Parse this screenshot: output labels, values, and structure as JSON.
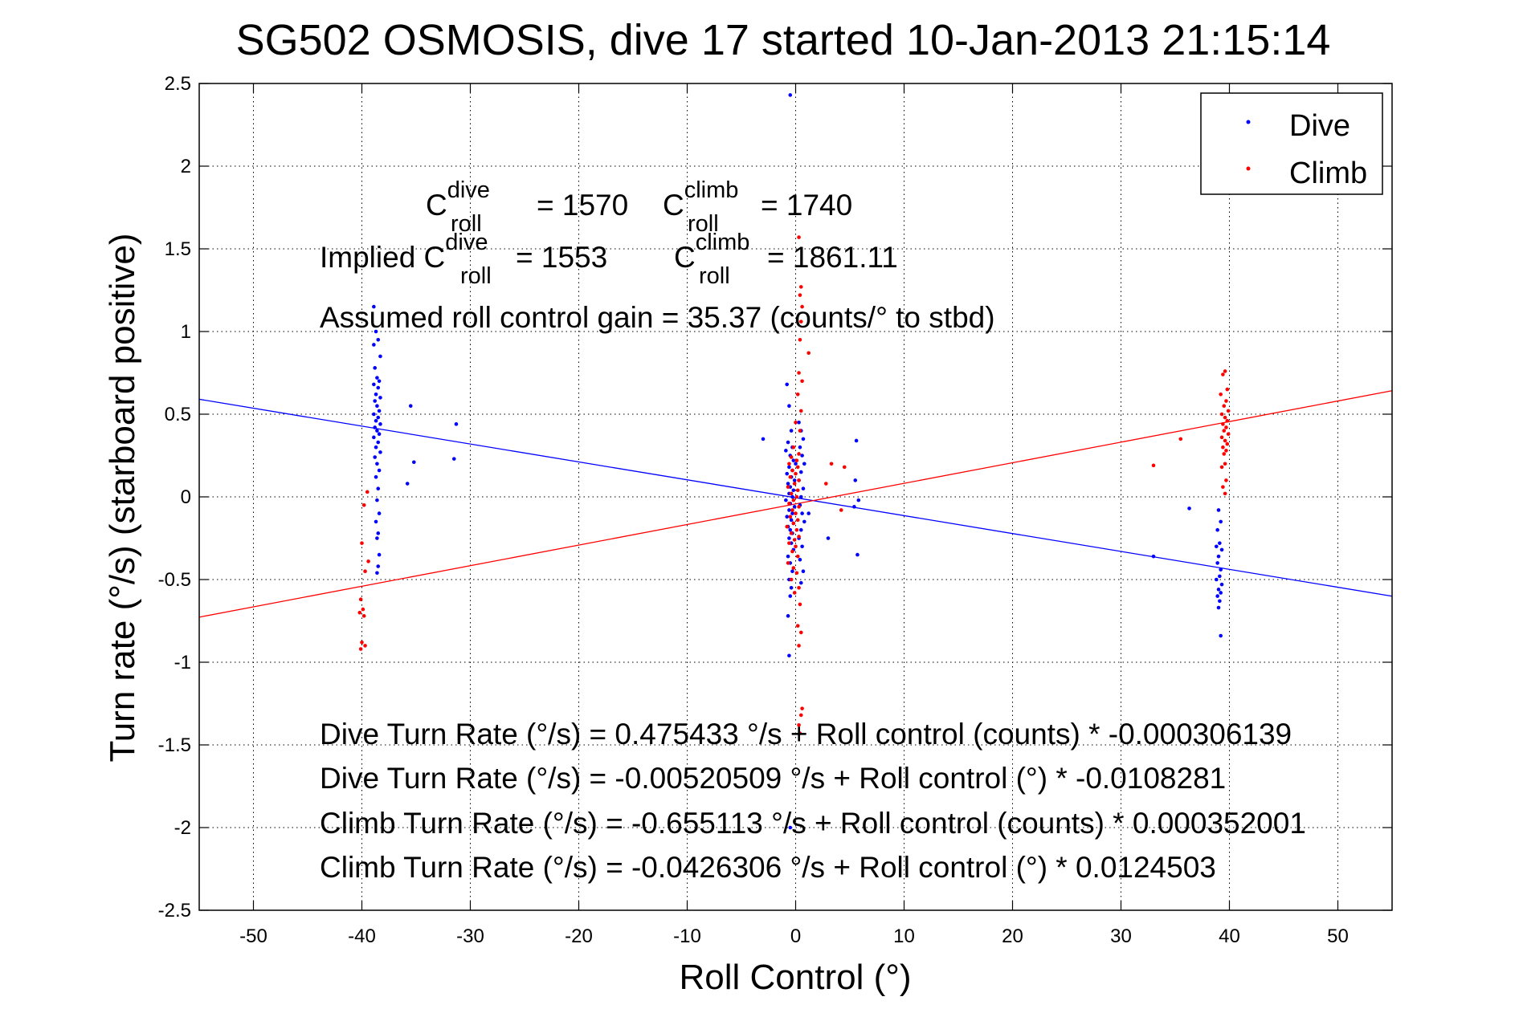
{
  "chart_data": {
    "type": "scatter",
    "title": "SG502 OSMOSIS, dive 17 started 10-Jan-2013 21:15:14",
    "xlabel": "Roll Control (°)",
    "ylabel": "Turn rate (°/s) (starboard positive)",
    "xlim": [
      -55,
      55
    ],
    "ylim": [
      -2.5,
      2.5
    ],
    "xticks": [
      "-50",
      "-40",
      "-30",
      "-20",
      "-10",
      "0",
      "10",
      "20",
      "30",
      "40",
      "50"
    ],
    "yticks": [
      "-2.5",
      "-2",
      "-1.5",
      "-1",
      "-0.5",
      "0",
      "0.5",
      "1",
      "1.5",
      "2",
      "2.5"
    ],
    "grid": true,
    "legend_position": "top-right",
    "legend": [
      {
        "name": "Dive",
        "color": "#0000ff"
      },
      {
        "name": "Climb",
        "color": "#ff0000"
      }
    ],
    "fit_lines": [
      {
        "series": "Dive",
        "intercept": -0.00520509,
        "slope": -0.0108281,
        "color": "#0000ff"
      },
      {
        "series": "Climb",
        "intercept": -0.0426306,
        "slope": 0.0124503,
        "color": "#ff0000"
      }
    ],
    "annotations": {
      "c_roll_line": {
        "dive_base": "C",
        "dive_sup": "dive",
        "dive_sub": "roll",
        "dive_value": "= 1570",
        "climb_base": "C",
        "climb_sup": "climb",
        "climb_sub": "roll",
        "climb_value": "= 1740"
      },
      "implied_line": {
        "prefix": "Implied C",
        "dive_sup": "dive",
        "dive_sub": "roll",
        "dive_value": "= 1553",
        "climb_base": "C",
        "climb_sup": "climb",
        "climb_sub": "roll",
        "climb_value": "= 1861.11"
      },
      "gain": "Assumed roll control gain = 35.37 (counts/° to stbd)",
      "equations": [
        "Dive Turn Rate (°/s) = 0.475433 °/s + Roll control (counts) * -0.000306139",
        "Dive Turn Rate (°/s) = -0.00520509 °/s + Roll control (°) * -0.0108281",
        "Climb Turn Rate (°/s) = -0.655113 °/s + Roll control (counts) * 0.000352001",
        "Climb Turn Rate (°/s) = -0.0426306 °/s + Roll control (°) * 0.0124503"
      ]
    },
    "series": [
      {
        "name": "Dive",
        "color": "#0000ff",
        "points": [
          [
            -38.9,
            1.15
          ],
          [
            -38.7,
            1.0
          ],
          [
            -38.5,
            0.95
          ],
          [
            -38.9,
            0.92
          ],
          [
            -38.3,
            0.85
          ],
          [
            -38.8,
            0.78
          ],
          [
            -38.6,
            0.72
          ],
          [
            -38.4,
            0.7
          ],
          [
            -38.9,
            0.68
          ],
          [
            -38.5,
            0.66
          ],
          [
            -38.7,
            0.62
          ],
          [
            -38.3,
            0.6
          ],
          [
            -38.8,
            0.58
          ],
          [
            -38.6,
            0.55
          ],
          [
            -38.4,
            0.52
          ],
          [
            -38.9,
            0.5
          ],
          [
            -38.5,
            0.48
          ],
          [
            -38.7,
            0.46
          ],
          [
            -38.3,
            0.44
          ],
          [
            -38.8,
            0.42
          ],
          [
            -38.6,
            0.4
          ],
          [
            -38.4,
            0.38
          ],
          [
            -38.9,
            0.36
          ],
          [
            -38.5,
            0.33
          ],
          [
            -38.7,
            0.3
          ],
          [
            -38.3,
            0.27
          ],
          [
            -38.8,
            0.24
          ],
          [
            -38.6,
            0.2
          ],
          [
            -38.4,
            0.16
          ],
          [
            -38.7,
            0.12
          ],
          [
            -38.5,
            0.05
          ],
          [
            -38.6,
            -0.02
          ],
          [
            -38.4,
            -0.1
          ],
          [
            -38.7,
            -0.15
          ],
          [
            -38.5,
            -0.22
          ],
          [
            -38.6,
            -0.25
          ],
          [
            -38.4,
            -0.35
          ],
          [
            -38.5,
            -0.42
          ],
          [
            -38.6,
            -0.46
          ],
          [
            -35.5,
            0.55
          ],
          [
            -35.2,
            0.21
          ],
          [
            -35.8,
            0.08
          ],
          [
            -31.3,
            0.44
          ],
          [
            -31.5,
            0.23
          ],
          [
            -0.5,
            2.43
          ],
          [
            -0.8,
            0.68
          ],
          [
            -0.6,
            0.55
          ],
          [
            -0.4,
            0.4
          ],
          [
            -3.0,
            0.35
          ],
          [
            -0.7,
            0.33
          ],
          [
            -0.3,
            0.3
          ],
          [
            -0.9,
            0.28
          ],
          [
            -0.5,
            0.25
          ],
          [
            -0.2,
            0.22
          ],
          [
            0.0,
            0.2
          ],
          [
            -0.6,
            0.18
          ],
          [
            -0.3,
            0.16
          ],
          [
            -0.8,
            0.14
          ],
          [
            -0.4,
            0.12
          ],
          [
            -0.1,
            0.1
          ],
          [
            -0.7,
            0.08
          ],
          [
            -0.5,
            0.06
          ],
          [
            -0.2,
            0.04
          ],
          [
            -0.6,
            0.02
          ],
          [
            -0.3,
            0.0
          ],
          [
            -0.9,
            -0.02
          ],
          [
            -0.5,
            -0.04
          ],
          [
            -0.1,
            -0.06
          ],
          [
            -0.6,
            -0.08
          ],
          [
            -0.3,
            -0.1
          ],
          [
            -0.8,
            -0.12
          ],
          [
            -0.4,
            -0.14
          ],
          [
            -0.2,
            -0.16
          ],
          [
            -0.7,
            -0.18
          ],
          [
            -0.5,
            -0.2
          ],
          [
            -0.3,
            -0.22
          ],
          [
            -0.6,
            -0.25
          ],
          [
            -0.4,
            -0.28
          ],
          [
            -0.2,
            -0.32
          ],
          [
            -0.7,
            -0.36
          ],
          [
            -0.5,
            -0.4
          ],
          [
            -0.3,
            -0.45
          ],
          [
            -0.6,
            -0.5
          ],
          [
            -0.4,
            -0.55
          ],
          [
            -0.5,
            -0.6
          ],
          [
            -0.7,
            -0.72
          ],
          [
            -0.6,
            -0.96
          ],
          [
            -0.5,
            -2.0
          ],
          [
            0.3,
            0.45
          ],
          [
            0.5,
            0.4
          ],
          [
            0.7,
            0.35
          ],
          [
            0.4,
            0.3
          ],
          [
            0.6,
            0.25
          ],
          [
            0.8,
            0.2
          ],
          [
            0.5,
            0.15
          ],
          [
            0.3,
            0.1
          ],
          [
            0.7,
            0.05
          ],
          [
            0.5,
            0.0
          ],
          [
            0.4,
            -0.05
          ],
          [
            0.6,
            -0.1
          ],
          [
            0.8,
            -0.15
          ],
          [
            0.5,
            -0.2
          ],
          [
            0.3,
            -0.25
          ],
          [
            0.6,
            -0.3
          ],
          [
            0.4,
            -0.38
          ],
          [
            0.7,
            -0.45
          ],
          [
            0.5,
            -0.52
          ],
          [
            5.6,
            0.34
          ],
          [
            5.5,
            0.1
          ],
          [
            5.8,
            -0.02
          ],
          [
            5.4,
            -0.06
          ],
          [
            5.7,
            -0.35
          ],
          [
            3.0,
            -0.25
          ],
          [
            1.2,
            -0.1
          ],
          [
            33.0,
            -0.36
          ],
          [
            36.3,
            -0.07
          ],
          [
            39.0,
            -0.08
          ],
          [
            39.2,
            -0.15
          ],
          [
            38.9,
            -0.2
          ],
          [
            39.1,
            -0.28
          ],
          [
            38.8,
            -0.3
          ],
          [
            39.3,
            -0.32
          ],
          [
            39.0,
            -0.36
          ],
          [
            38.9,
            -0.4
          ],
          [
            39.2,
            -0.44
          ],
          [
            39.1,
            -0.48
          ],
          [
            38.8,
            -0.5
          ],
          [
            39.3,
            -0.53
          ],
          [
            39.0,
            -0.56
          ],
          [
            39.2,
            -0.58
          ],
          [
            38.9,
            -0.6
          ],
          [
            39.1,
            -0.63
          ],
          [
            39.0,
            -0.67
          ],
          [
            39.2,
            -0.84
          ]
        ]
      },
      {
        "name": "Climb",
        "color": "#ff0000",
        "points": [
          [
            -39.5,
            0.03
          ],
          [
            -39.8,
            -0.05
          ],
          [
            -40.0,
            -0.28
          ],
          [
            -39.4,
            -0.39
          ],
          [
            -39.7,
            -0.45
          ],
          [
            -40.1,
            -0.62
          ],
          [
            -39.9,
            -0.68
          ],
          [
            -40.2,
            -0.7
          ],
          [
            -39.8,
            -0.72
          ],
          [
            -40.0,
            -0.88
          ],
          [
            -39.7,
            -0.9
          ],
          [
            -40.1,
            -0.92
          ],
          [
            0.3,
            1.57
          ],
          [
            0.5,
            1.27
          ],
          [
            0.4,
            1.22
          ],
          [
            0.6,
            1.15
          ],
          [
            0.5,
            1.06
          ],
          [
            0.4,
            0.95
          ],
          [
            1.2,
            0.87
          ],
          [
            0.3,
            0.75
          ],
          [
            0.6,
            0.7
          ],
          [
            0.2,
            0.62
          ],
          [
            0.5,
            0.52
          ],
          [
            0.0,
            0.45
          ],
          [
            0.4,
            0.4
          ],
          [
            -0.2,
            0.3
          ],
          [
            0.3,
            0.26
          ],
          [
            -0.4,
            0.24
          ],
          [
            0.1,
            0.22
          ],
          [
            -0.6,
            0.2
          ],
          [
            0.2,
            0.18
          ],
          [
            -0.3,
            0.16
          ],
          [
            0.0,
            0.14
          ],
          [
            -0.5,
            0.12
          ],
          [
            0.3,
            0.1
          ],
          [
            -0.1,
            0.08
          ],
          [
            -0.7,
            0.06
          ],
          [
            0.2,
            0.04
          ],
          [
            -0.4,
            0.02
          ],
          [
            0.1,
            0.0
          ],
          [
            -0.2,
            -0.02
          ],
          [
            -0.6,
            -0.04
          ],
          [
            0.3,
            -0.06
          ],
          [
            -0.3,
            -0.08
          ],
          [
            0.0,
            -0.1
          ],
          [
            -0.5,
            -0.12
          ],
          [
            0.2,
            -0.14
          ],
          [
            -0.2,
            -0.16
          ],
          [
            -0.8,
            -0.18
          ],
          [
            0.1,
            -0.2
          ],
          [
            -0.4,
            -0.22
          ],
          [
            0.3,
            -0.24
          ],
          [
            -0.1,
            -0.26
          ],
          [
            -0.6,
            -0.28
          ],
          [
            0.0,
            -0.3
          ],
          [
            -0.3,
            -0.33
          ],
          [
            0.2,
            -0.36
          ],
          [
            -0.7,
            -0.4
          ],
          [
            -0.2,
            -0.43
          ],
          [
            0.1,
            -0.46
          ],
          [
            -0.4,
            -0.5
          ],
          [
            0.3,
            -0.55
          ],
          [
            -0.1,
            -0.58
          ],
          [
            0.4,
            -0.65
          ],
          [
            0.2,
            -0.78
          ],
          [
            0.5,
            -0.82
          ],
          [
            0.3,
            -0.9
          ],
          [
            0.6,
            -1.28
          ],
          [
            0.5,
            -1.32
          ],
          [
            0.3,
            -1.38
          ],
          [
            0.4,
            -1.43
          ],
          [
            3.3,
            0.2
          ],
          [
            4.5,
            0.18
          ],
          [
            2.8,
            0.08
          ],
          [
            4.2,
            -0.08
          ],
          [
            33.0,
            0.19
          ],
          [
            35.5,
            0.35
          ],
          [
            39.6,
            0.76
          ],
          [
            39.4,
            0.74
          ],
          [
            39.8,
            0.65
          ],
          [
            39.2,
            0.62
          ],
          [
            39.7,
            0.58
          ],
          [
            39.5,
            0.55
          ],
          [
            39.9,
            0.52
          ],
          [
            39.3,
            0.5
          ],
          [
            39.6,
            0.48
          ],
          [
            39.8,
            0.46
          ],
          [
            39.4,
            0.44
          ],
          [
            39.7,
            0.42
          ],
          [
            39.5,
            0.4
          ],
          [
            39.9,
            0.38
          ],
          [
            39.3,
            0.36
          ],
          [
            39.6,
            0.34
          ],
          [
            39.8,
            0.32
          ],
          [
            39.4,
            0.3
          ],
          [
            39.7,
            0.28
          ],
          [
            39.5,
            0.26
          ],
          [
            39.6,
            0.2
          ],
          [
            39.3,
            0.18
          ],
          [
            39.7,
            0.1
          ],
          [
            39.4,
            0.06
          ],
          [
            39.6,
            0.02
          ]
        ]
      }
    ]
  }
}
